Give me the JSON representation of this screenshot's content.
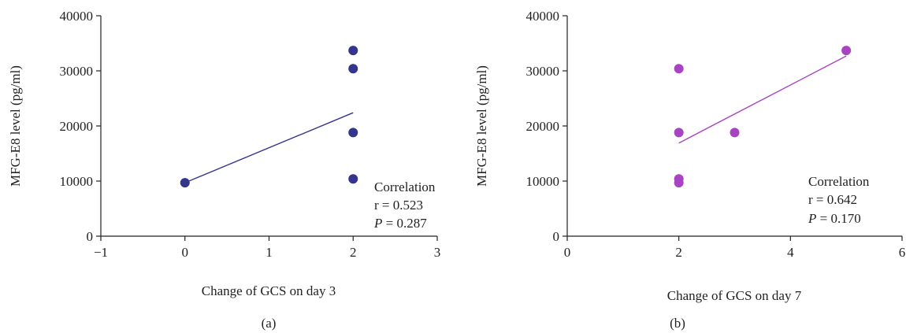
{
  "chart_data": [
    {
      "type": "scatter",
      "panel_label": "(a)",
      "xlabel": "Change of GCS on day 3",
      "ylabel": "MFG-E8 level (pg/ml)",
      "xlim": [
        -1,
        3
      ],
      "ylim": [
        0,
        40000
      ],
      "xticks": [
        -1,
        0,
        1,
        2,
        3
      ],
      "xtick_labels": [
        "−1",
        "0",
        "1",
        "2",
        "3"
      ],
      "yticks": [
        0,
        10000,
        20000,
        30000,
        40000
      ],
      "ytick_labels": [
        "0",
        "10000",
        "20000",
        "30000",
        "40000"
      ],
      "color": "#34358c",
      "points": [
        {
          "x": 0,
          "y": 9700
        },
        {
          "x": 2,
          "y": 33700
        },
        {
          "x": 2,
          "y": 30400
        },
        {
          "x": 2,
          "y": 18800
        },
        {
          "x": 2,
          "y": 10400
        }
      ],
      "trendline": {
        "x": [
          0,
          2
        ],
        "y": [
          9700,
          22400
        ]
      },
      "annotation": {
        "line1": "Correlation",
        "line2": "r = 0.523",
        "p_symbol": "P",
        "p_rest": " = 0.287"
      },
      "grid": false
    },
    {
      "type": "scatter",
      "panel_label": "(b)",
      "xlabel": "Change of GCS on day 7",
      "ylabel": "MFG-E8 level (pg/ml)",
      "xlim": [
        0,
        6
      ],
      "ylim": [
        0,
        40000
      ],
      "xticks": [
        0,
        2,
        4,
        6
      ],
      "xtick_labels": [
        "0",
        "2",
        "4",
        "6"
      ],
      "yticks": [
        0,
        10000,
        20000,
        30000,
        40000
      ],
      "ytick_labels": [
        "0",
        "10000",
        "20000",
        "30000",
        "40000"
      ],
      "color": "#a844c2",
      "points": [
        {
          "x": 2,
          "y": 30400
        },
        {
          "x": 2,
          "y": 18800
        },
        {
          "x": 2,
          "y": 10400
        },
        {
          "x": 2,
          "y": 9700
        },
        {
          "x": 3,
          "y": 18800
        },
        {
          "x": 5,
          "y": 33700
        }
      ],
      "trendline": {
        "x": [
          2,
          5
        ],
        "y": [
          16900,
          32700
        ]
      },
      "annotation": {
        "line1": "Correlation",
        "line2": "r = 0.642",
        "p_symbol": "P",
        "p_rest": " = 0.170"
      },
      "grid": false
    }
  ]
}
